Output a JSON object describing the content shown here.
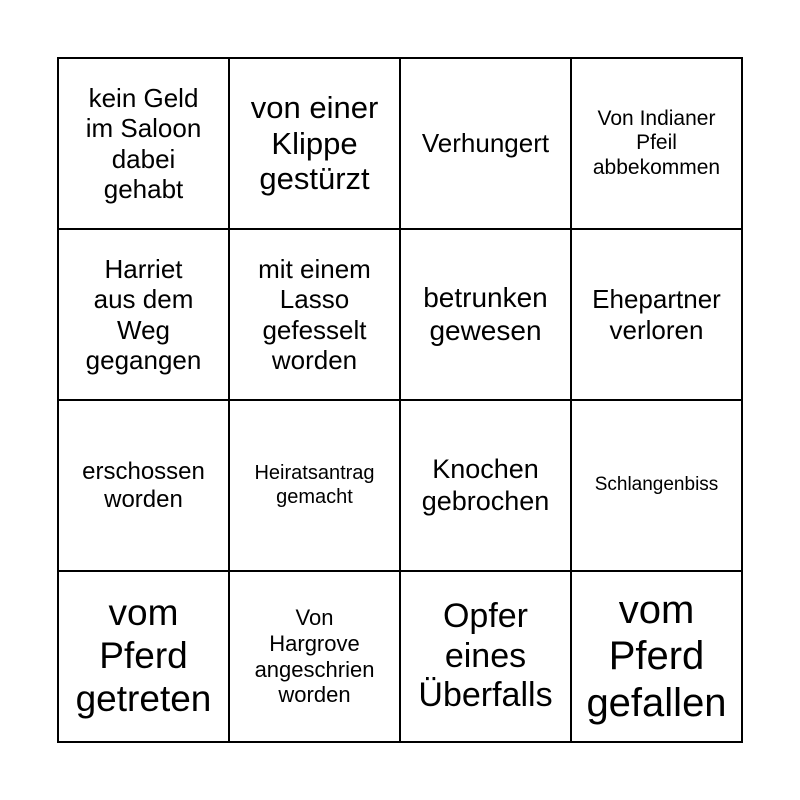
{
  "cells": [
    {
      "lines": [
        "kein Geld",
        "im Saloon",
        "dabei",
        "gehabt"
      ],
      "size": 26
    },
    {
      "lines": [
        "von einer",
        "Klippe",
        "gestürzt"
      ],
      "size": 31
    },
    {
      "lines": [
        "Verhungert"
      ],
      "size": 26
    },
    {
      "lines": [
        "Von Indianer",
        "Pfeil",
        "abbekommen"
      ],
      "size": 21
    },
    {
      "lines": [
        "Harriet",
        "aus dem",
        "Weg",
        "gegangen"
      ],
      "size": 26
    },
    {
      "lines": [
        "mit einem",
        "Lasso",
        "gefesselt",
        "worden"
      ],
      "size": 26
    },
    {
      "lines": [
        "betrunken",
        "gewesen"
      ],
      "size": 28
    },
    {
      "lines": [
        "Ehepartner",
        "verloren"
      ],
      "size": 26
    },
    {
      "lines": [
        "erschossen",
        "worden"
      ],
      "size": 24
    },
    {
      "lines": [
        "Heiratsantrag",
        "gemacht"
      ],
      "size": 20
    },
    {
      "lines": [
        "Knochen",
        "gebrochen"
      ],
      "size": 27
    },
    {
      "lines": [
        "Schlangenbiss"
      ],
      "size": 19
    },
    {
      "lines": [
        "vom",
        "Pferd",
        "getreten"
      ],
      "size": 37
    },
    {
      "lines": [
        "Von",
        "Hargrove",
        "angeschrien",
        "worden"
      ],
      "size": 22
    },
    {
      "lines": [
        "Opfer",
        "eines",
        "Überfalls"
      ],
      "size": 34
    },
    {
      "lines": [
        "vom",
        "Pferd",
        "gefallen"
      ],
      "size": 40
    }
  ]
}
